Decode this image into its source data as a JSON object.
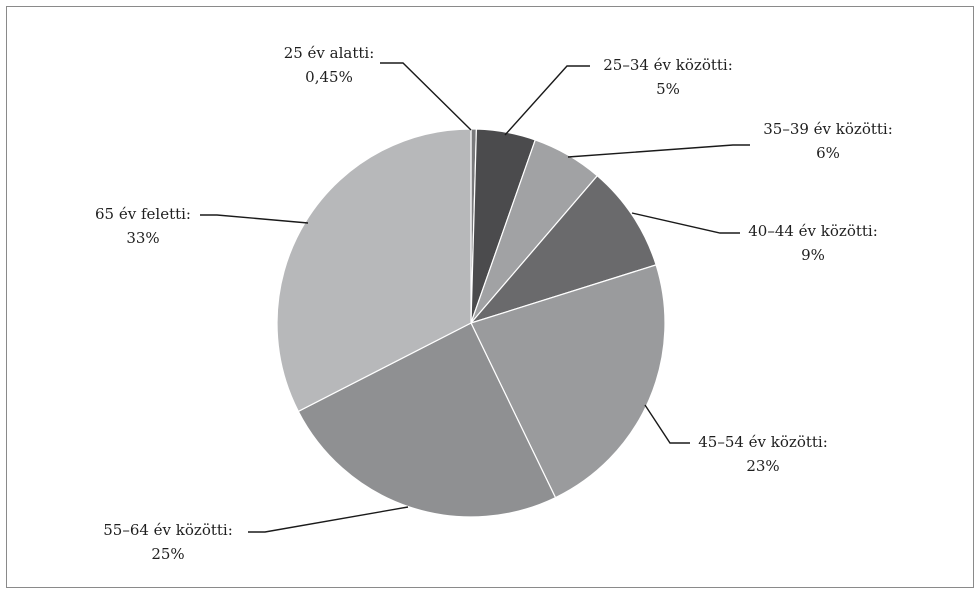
{
  "chart_data": {
    "type": "pie",
    "title": "",
    "slices": [
      {
        "label": "25 év alatti:",
        "value_label": "0,45%",
        "value": 0.45,
        "color": "#7a7a7c"
      },
      {
        "label": "25–34 év közötti:",
        "value_label": "5%",
        "value": 5,
        "color": "#4b4b4d"
      },
      {
        "label": "35–39 év közötti:",
        "value_label": "6%",
        "value": 6,
        "color": "#a1a2a4"
      },
      {
        "label": "40–44 év közötti:",
        "value_label": "9%",
        "value": 9,
        "color": "#6a6a6c"
      },
      {
        "label": "45–54 év közötti:",
        "value_label": "23%",
        "value": 23,
        "color": "#9a9b9d"
      },
      {
        "label": "55–64 év közötti:",
        "value_label": "25%",
        "value": 25,
        "color": "#8f9092"
      },
      {
        "label": "65 év feletti:",
        "value_label": "33%",
        "value": 33,
        "color": "#b7b8ba"
      }
    ],
    "start_angle": "top",
    "direction": "clockwise",
    "legend": "none",
    "labels": "outside with leader lines"
  }
}
